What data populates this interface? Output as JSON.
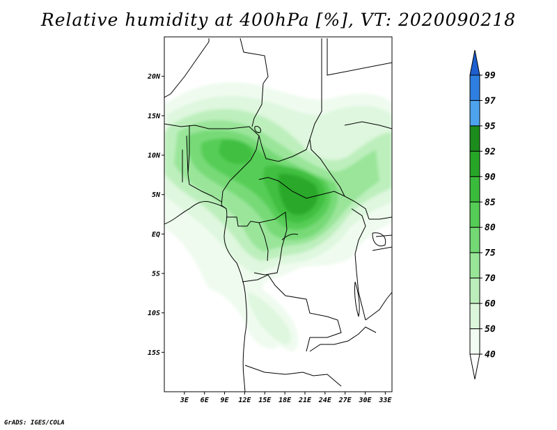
{
  "title": "Relative humidity at 400hPa [%], VT: 2020090218",
  "credit": "GrADS: IGES/COLA",
  "map": {
    "lon_range": [
      0,
      34
    ],
    "lat_range": [
      -20,
      25
    ],
    "lat_ticks": [
      "20N",
      "15N",
      "10N",
      "5N",
      "EQ",
      "5S",
      "10S",
      "15S"
    ],
    "lat_tick_values": [
      20,
      15,
      10,
      5,
      0,
      -5,
      -10,
      -15
    ],
    "lon_ticks": [
      "3E",
      "6E",
      "9E",
      "12E",
      "15E",
      "18E",
      "21E",
      "24E",
      "27E",
      "30E",
      "33E"
    ],
    "lon_tick_values": [
      3,
      6,
      9,
      12,
      15,
      18,
      21,
      24,
      27,
      30,
      33
    ]
  },
  "colorbar": {
    "labels": [
      "99",
      "97",
      "95",
      "92",
      "90",
      "85",
      "80",
      "75",
      "70",
      "60",
      "50",
      "40"
    ],
    "colors": [
      "#1e5fd0",
      "#2e7fe0",
      "#4ea3ee",
      "#1c8c1c",
      "#27a527",
      "#3bbb3b",
      "#55cc55",
      "#74d974",
      "#98e598",
      "#bbeebb",
      "#dcf6dc",
      "#f2fcf2",
      "#ffffff"
    ]
  }
}
